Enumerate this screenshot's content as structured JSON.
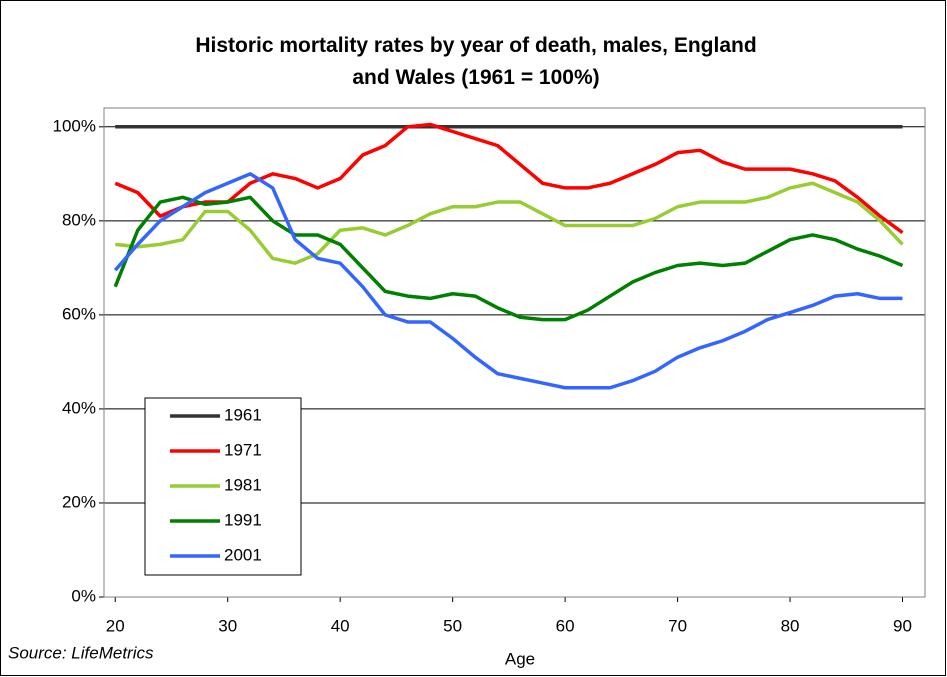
{
  "chart_data": {
    "type": "line",
    "title": "Historic mortality rates by year of death, males, England and Wales (1961 = 100%)",
    "x_label": "Age",
    "source": "Source: LifeMetrics",
    "x": [
      20,
      22,
      24,
      26,
      28,
      30,
      32,
      34,
      36,
      38,
      40,
      42,
      44,
      46,
      48,
      50,
      52,
      54,
      56,
      58,
      60,
      62,
      64,
      66,
      68,
      70,
      72,
      74,
      76,
      78,
      80,
      82,
      84,
      86,
      88,
      90
    ],
    "series": [
      {
        "name": "1961",
        "color": "#333333",
        "values": [
          100,
          100,
          100,
          100,
          100,
          100,
          100,
          100,
          100,
          100,
          100,
          100,
          100,
          100,
          100,
          100,
          100,
          100,
          100,
          100,
          100,
          100,
          100,
          100,
          100,
          100,
          100,
          100,
          100,
          100,
          100,
          100,
          100,
          100,
          100,
          100
        ]
      },
      {
        "name": "1971",
        "color": "#ff0000",
        "values": [
          88,
          86,
          81,
          83,
          84,
          84,
          88,
          90,
          89,
          87,
          89,
          94,
          96,
          100,
          100.5,
          99,
          97.5,
          96,
          92,
          88,
          87,
          87,
          88,
          90,
          92,
          94.5,
          95,
          92.5,
          91,
          91,
          91,
          90,
          88.5,
          85,
          81,
          77.5
        ]
      },
      {
        "name": "1981",
        "color": "#99cc33",
        "values": [
          75,
          74.5,
          75,
          76,
          82,
          82,
          78,
          72,
          71,
          73,
          78,
          78.5,
          77,
          79,
          81.5,
          83,
          83,
          84,
          84,
          81.5,
          79,
          79,
          79,
          79,
          80.5,
          83,
          84,
          84,
          84,
          85,
          87,
          88,
          86,
          84,
          80,
          75
        ]
      },
      {
        "name": "1991",
        "color": "#008000",
        "values": [
          66,
          78,
          84,
          85,
          83.5,
          84,
          85,
          80,
          77,
          77,
          75,
          70,
          65,
          64,
          63.5,
          64.5,
          64,
          61.5,
          59.5,
          59,
          59,
          61,
          64,
          67,
          69,
          70.5,
          71,
          70.5,
          71,
          73.5,
          76,
          77,
          76,
          74,
          72.5,
          70.5
        ]
      },
      {
        "name": "2001",
        "color": "#3366ff",
        "values": [
          69.5,
          75,
          80,
          83,
          86,
          88,
          90,
          87,
          76,
          72,
          71,
          66,
          60,
          58.5,
          58.5,
          55,
          51,
          47.5,
          46.5,
          45.5,
          44.5,
          44.5,
          44.5,
          46,
          48,
          51,
          53,
          54.5,
          56.5,
          59,
          60.5,
          62,
          64,
          64.5,
          63.5,
          63.5
        ]
      }
    ],
    "xlim": [
      19,
      92
    ],
    "xticks": [
      20,
      30,
      40,
      50,
      60,
      70,
      80,
      90
    ],
    "ylim": [
      0,
      104
    ],
    "yticks": [
      {
        "value": 0,
        "label": "0%"
      },
      {
        "value": 20,
        "label": "20%"
      },
      {
        "value": 40,
        "label": "40%"
      },
      {
        "value": 60,
        "label": "60%"
      },
      {
        "value": 80,
        "label": "80%"
      },
      {
        "value": 100,
        "label": "100%"
      }
    ],
    "grid": true,
    "legend": "lower-left"
  }
}
